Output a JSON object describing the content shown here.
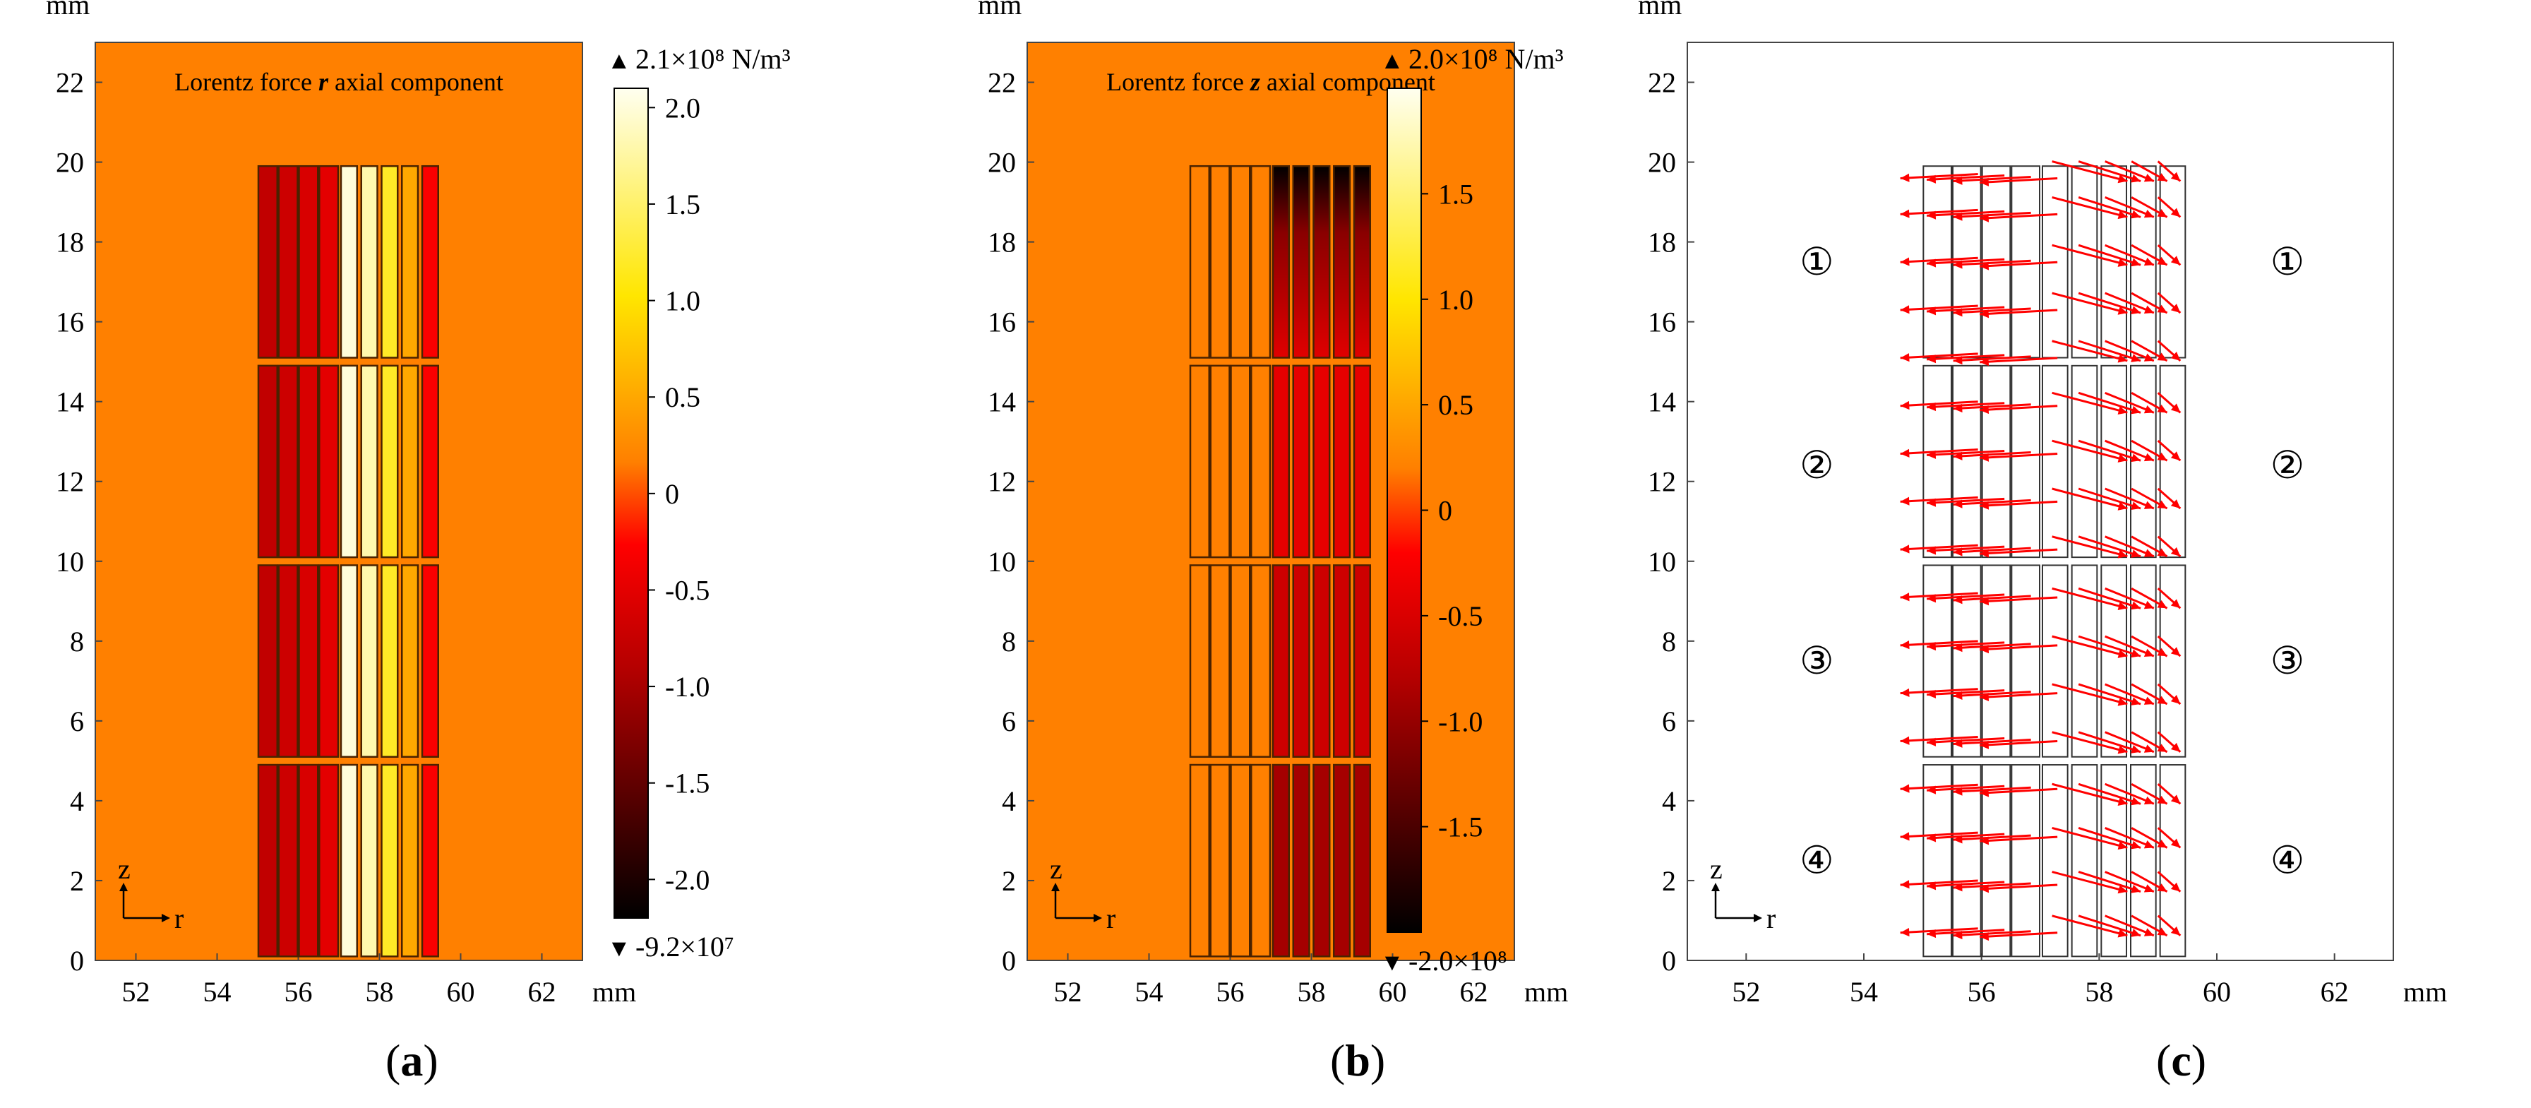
{
  "panels": [
    {
      "id": "a",
      "caption_open": "(",
      "caption_letter": "a",
      "caption_close": ")",
      "title_prefix": "Lorentz force ",
      "title_var": "r",
      "title_suffix": " axial component",
      "unit_label": "mm",
      "x_ticks": [
        "52",
        "54",
        "56",
        "58",
        "60",
        "62"
      ],
      "y_ticks": [
        "0",
        "2",
        "4",
        "6",
        "8",
        "10",
        "12",
        "14",
        "16",
        "18",
        "20",
        "22"
      ],
      "x_unit": "mm",
      "colorbar": {
        "max_label": "2.1×10⁸ N/m³",
        "min_label": "-9.2×10⁷",
        "ticks": [
          "2.0",
          "1.5",
          "1.0",
          "0.5",
          "0",
          "-0.5",
          "-1.0",
          "-1.5",
          "-2.0"
        ],
        "max_marker": "▲",
        "min_marker": "▼"
      },
      "axis_z": "z",
      "axis_r": "r",
      "background_color": "#FF8000"
    },
    {
      "id": "b",
      "caption_open": "(",
      "caption_letter": "b",
      "caption_close": ")",
      "title_prefix": "Lorentz force ",
      "title_var": "z",
      "title_suffix": " axial component",
      "unit_label": "mm",
      "x_ticks": [
        "52",
        "54",
        "56",
        "58",
        "60",
        "62"
      ],
      "y_ticks": [
        "0",
        "2",
        "4",
        "6",
        "8",
        "10",
        "12",
        "14",
        "16",
        "18",
        "20",
        "22"
      ],
      "x_unit": "mm",
      "colorbar": {
        "max_label": "2.0×10⁸ N/m³",
        "min_label": "-2.0×10⁸",
        "ticks": [
          "1.5",
          "1.0",
          "0.5",
          "0",
          "-0.5",
          "-1.0",
          "-1.5"
        ],
        "max_marker": "▲",
        "min_marker": "▼"
      },
      "axis_z": "z",
      "axis_r": "r",
      "background_color": "#FF8000"
    },
    {
      "id": "c",
      "caption_open": "(",
      "caption_letter": "c",
      "caption_close": ")",
      "unit_label": "mm",
      "x_ticks": [
        "52",
        "54",
        "56",
        "58",
        "60",
        "62"
      ],
      "y_ticks": [
        "0",
        "2",
        "4",
        "6",
        "8",
        "10",
        "12",
        "14",
        "16",
        "18",
        "20",
        "22"
      ],
      "x_unit": "mm",
      "axis_z": "z",
      "axis_r": "r",
      "group_labels": [
        "①",
        "②",
        "③",
        "④"
      ],
      "arrow_color": "#FF0000"
    }
  ],
  "chart_data": [
    {
      "type": "heatmap",
      "title": "Lorentz force r axial component",
      "xlabel": "mm",
      "ylabel": "mm",
      "xlim": [
        51,
        63
      ],
      "ylim": [
        0,
        23
      ],
      "colorbar_range": [
        -92000000.0,
        210000000.0
      ],
      "colorbar_unit": "N/m³",
      "coil_groups_z": [
        [
          0,
          5
        ],
        [
          5,
          10
        ],
        [
          10,
          15
        ],
        [
          15,
          20
        ]
      ],
      "inner_strips_r": [
        [
          55.0,
          55.5
        ],
        [
          55.5,
          56.0
        ],
        [
          56.0,
          56.5
        ],
        [
          56.5,
          57.0
        ]
      ],
      "outer_strips_r": [
        [
          57.0,
          57.5
        ],
        [
          57.5,
          58.0
        ],
        [
          58.0,
          58.5
        ],
        [
          58.5,
          59.0
        ],
        [
          59.0,
          59.5
        ]
      ],
      "outer_strip_values": [
        200000000.0,
        180000000.0,
        120000000.0,
        50000000.0,
        -30000000.0
      ],
      "inner_strip_values": [
        -80000000.0,
        -70000000.0,
        -60000000.0,
        -50000000.0
      ]
    },
    {
      "type": "heatmap",
      "title": "Lorentz force z axial component",
      "xlabel": "mm",
      "ylabel": "mm",
      "xlim": [
        51,
        63
      ],
      "ylim": [
        0,
        23
      ],
      "colorbar_range": [
        -200000000.0,
        200000000.0
      ],
      "colorbar_unit": "N/m³",
      "coil_groups_z": [
        [
          0,
          5
        ],
        [
          5,
          10
        ],
        [
          10,
          15
        ],
        [
          15,
          20
        ]
      ],
      "inner_strips_r": [
        [
          55.0,
          55.5
        ],
        [
          55.5,
          56.0
        ],
        [
          56.0,
          56.5
        ],
        [
          56.5,
          57.0
        ]
      ],
      "outer_strips_r": [
        [
          57.0,
          57.5
        ],
        [
          57.5,
          58.0
        ],
        [
          58.0,
          58.5
        ],
        [
          58.5,
          59.0
        ],
        [
          59.0,
          59.5
        ]
      ],
      "outer_group_values": [
        -90000000.0,
        -60000000.0,
        -40000000.0,
        -20000000.0
      ],
      "outer_top_value": -200000000.0,
      "inner_strip_values": [
        5000000.0,
        5000000.0,
        5000000.0,
        5000000.0
      ]
    },
    {
      "type": "scatter",
      "title": "",
      "xlabel": "mm",
      "ylabel": "mm",
      "xlim": [
        51,
        63
      ],
      "ylim": [
        0,
        23
      ],
      "description_values": {
        "inner_arrow_z": [
          0.8,
          2.0,
          3.2,
          4.4,
          5.6,
          6.8,
          8.0,
          9.2,
          10.4,
          11.6,
          12.8,
          14.0,
          15.2,
          16.4,
          17.6,
          18.8,
          19.7
        ],
        "inner_arrow_direction": "-r",
        "outer_arrow_z": [
          0.8,
          1.9,
          3.0,
          4.1,
          5.4,
          6.6,
          7.8,
          9.0,
          10.3,
          11.5,
          12.7,
          13.9,
          15.2,
          16.4,
          17.6,
          18.8,
          19.7
        ],
        "outer_arrow_direction": "+r, converging toward r≈58.8"
      }
    }
  ]
}
